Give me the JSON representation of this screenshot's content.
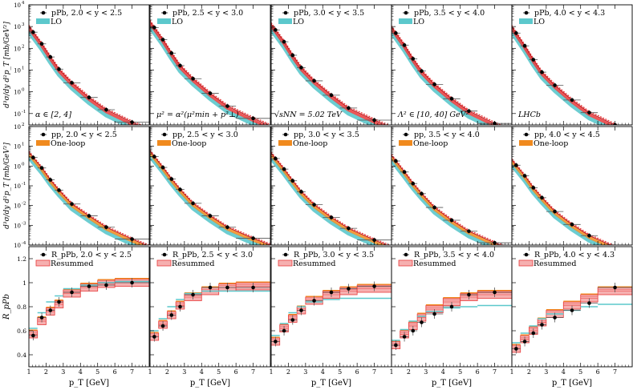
{
  "chart_data": {
    "type": "line",
    "layout": "3 rows x 5 columns grid of log/linear plots",
    "x_axis": {
      "label": "p_T [GeV]",
      "range": [
        1,
        8
      ],
      "ticks": [
        1,
        2,
        3,
        4,
        5,
        6,
        7
      ]
    },
    "x_points": [
      1.25,
      1.75,
      2.25,
      2.75,
      3.5,
      4.5,
      5.5,
      7.0
    ],
    "x_errors": [
      0.25,
      0.25,
      0.25,
      0.25,
      0.5,
      0.5,
      0.5,
      1.0
    ],
    "rows": [
      {
        "id": "pPb",
        "ylabel": "d³σ/dy d²p_T [mb/GeV²]",
        "scale": "log",
        "ylim": [
          0.03,
          10000
        ],
        "y_exponents": [
          -1,
          0,
          1,
          2,
          3,
          4
        ],
        "band_label": "LO",
        "band_color": "#5cc8cc",
        "panels": [
          {
            "legend": "pPb, 2.0 < y < 2.5",
            "annotation": "α ∈ [2, 4]",
            "values": [
              550,
              160,
              40,
              11,
              2.6,
              0.55,
              0.15,
              0.04
            ]
          },
          {
            "legend": "pPb, 2.5 < y < 3.0",
            "annotation": "μ² = α²(μ²min + p²⊥)",
            "values": [
              900,
              250,
              60,
              16,
              4.0,
              0.85,
              0.22,
              0.06
            ]
          },
          {
            "legend": "pPb, 3.0 < y < 3.5",
            "annotation": "√sNN = 5.02 TeV",
            "values": [
              700,
              200,
              48,
              13,
              3.2,
              0.7,
              0.18,
              0.05
            ]
          },
          {
            "legend": "pPb, 3.5 < y < 4.0",
            "annotation": "Λ² ∈ [10, 40]  GeV²",
            "values": [
              500,
              140,
              33,
              9,
              2.2,
              0.48,
              0.13,
              0.035
            ]
          },
          {
            "legend": "pPb, 4.0 < y < 4.3",
            "annotation": "LHCb",
            "values": [
              500,
              130,
              30,
              8,
              2.0,
              0.42,
              0.11,
              0.03
            ]
          }
        ]
      },
      {
        "id": "pp",
        "ylabel": "d³σ/dy d²p_T [mb/GeV²]",
        "scale": "log",
        "ylim": [
          0.0001,
          100
        ],
        "y_exponents": [
          -4,
          -3,
          -2,
          -1,
          0,
          1,
          2
        ],
        "band_label": "One-loop",
        "band_color": "#f08a1e",
        "panels": [
          {
            "legend": "pp, 2.0 < y < 2.5",
            "annotation": "",
            "values": [
              2.7,
              0.8,
              0.2,
              0.06,
              0.012,
              0.003,
              0.0008,
              0.0002
            ]
          },
          {
            "legend": "pp, 2.5 < y < 3.0",
            "annotation": "",
            "values": [
              3.0,
              0.85,
              0.22,
              0.065,
              0.013,
              0.003,
              0.0008,
              0.00022
            ]
          },
          {
            "legend": "pp, 3.0 < y < 3.5",
            "annotation": "",
            "values": [
              2.4,
              0.7,
              0.18,
              0.05,
              0.011,
              0.0025,
              0.0007,
              0.00018
            ]
          },
          {
            "legend": "pp, 3.5 < y < 4.0",
            "annotation": "",
            "values": [
              1.8,
              0.5,
              0.13,
              0.04,
              0.008,
              0.0018,
              0.0005,
              0.00013
            ]
          },
          {
            "legend": "pp, 4.0 < y < 4.5",
            "annotation": "",
            "values": [
              1.1,
              0.32,
              0.08,
              0.025,
              0.005,
              0.0011,
              0.0003,
              8e-05
            ]
          }
        ]
      },
      {
        "id": "RpPb",
        "ylabel": "R_pPb",
        "scale": "linear",
        "ylim": [
          0.3,
          1.3
        ],
        "y_ticks": [
          0.4,
          0.6,
          0.8,
          1.0,
          1.2
        ],
        "y_tick_labels": [
          "0.4",
          "0.6",
          "0.8",
          "1",
          "1.2"
        ],
        "band_label": "Resummed",
        "band_color": "#e83a3a",
        "panels": [
          {
            "legend": "R_pPb, 2.0 < y < 2.5",
            "annotation": "",
            "values": [
              0.56,
              0.71,
              0.77,
              0.84,
              0.92,
              0.97,
              0.98,
              1.0
            ],
            "band": [
              0.57,
              0.68,
              0.76,
              0.82,
              0.91,
              0.96,
              0.99,
              1.0
            ],
            "lo": [
              0.62,
              0.75,
              0.84,
              0.89,
              0.95,
              0.98,
              1.0,
              1.01
            ]
          },
          {
            "legend": "R_pPb, 2.5 < y < 3.0",
            "annotation": "",
            "values": [
              0.55,
              0.64,
              0.73,
              0.8,
              0.9,
              0.96,
              0.96,
              0.96
            ],
            "band": [
              0.55,
              0.65,
              0.73,
              0.81,
              0.88,
              0.93,
              0.96,
              0.97
            ],
            "lo": [
              0.6,
              0.7,
              0.8,
              0.86,
              0.91,
              0.93,
              0.93,
              0.93
            ]
          },
          {
            "legend": "R_pPb, 3.0 < y < 3.5",
            "annotation": "",
            "values": [
              0.51,
              0.6,
              0.69,
              0.77,
              0.85,
              0.92,
              0.95,
              0.97
            ],
            "band": [
              0.51,
              0.62,
              0.7,
              0.77,
              0.85,
              0.9,
              0.93,
              0.95
            ],
            "lo": [
              0.56,
              0.66,
              0.75,
              0.8,
              0.84,
              0.86,
              0.87,
              0.87
            ]
          },
          {
            "legend": "R_pPb, 3.5 < y < 4.0",
            "annotation": "",
            "values": [
              0.48,
              0.55,
              0.6,
              0.67,
              0.74,
              0.8,
              0.9,
              0.92
            ],
            "band": [
              0.48,
              0.57,
              0.64,
              0.71,
              0.78,
              0.84,
              0.88,
              0.9
            ],
            "lo": [
              0.52,
              0.61,
              0.68,
              0.72,
              0.76,
              0.79,
              0.8,
              0.81
            ]
          },
          {
            "legend": "R_pPb, 4.0 < y < 4.3",
            "annotation": "",
            "values": [
              0.45,
              0.51,
              0.58,
              0.65,
              0.71,
              0.77,
              0.83,
              0.96
            ],
            "band": [
              0.45,
              0.53,
              0.6,
              0.67,
              0.74,
              0.81,
              0.87,
              0.93
            ],
            "lo": [
              0.5,
              0.58,
              0.64,
              0.7,
              0.74,
              0.77,
              0.8,
              0.82
            ]
          }
        ]
      }
    ]
  }
}
